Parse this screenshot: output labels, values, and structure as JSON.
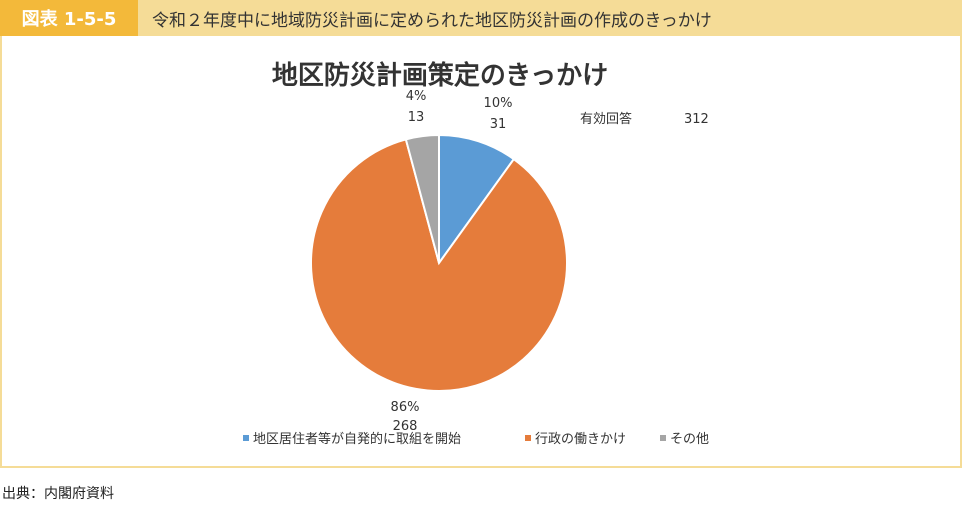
{
  "header": {
    "badge": "図表 1-5-5",
    "title": "令和２年度中に地域防災計画に定められた地区防災計画の作成のきっかけ"
  },
  "source": "出典：内閣府資料",
  "colors": {
    "header_bg": "#f5dc97",
    "badge_bg": "#f3b93a",
    "series": [
      "#5b9bd5",
      "#e57c3b",
      "#a5a5a5"
    ]
  },
  "chart_data": {
    "type": "pie",
    "title": "地区防災計画策定のきっかけ",
    "annotation": {
      "label": "有効回答",
      "value": "312"
    },
    "legend_position": "bottom",
    "slices": [
      {
        "name": "地区居住者等が自発的に取組を開始",
        "value": 31,
        "percent": "10%",
        "value_label": "31",
        "color": "#5b9bd5"
      },
      {
        "name": "行政の働きかけ",
        "value": 268,
        "percent": "86%",
        "value_label": "268",
        "color": "#e57c3b"
      },
      {
        "name": "その他",
        "value": 13,
        "percent": "4%",
        "value_label": "13",
        "color": "#a5a5a5"
      }
    ]
  }
}
